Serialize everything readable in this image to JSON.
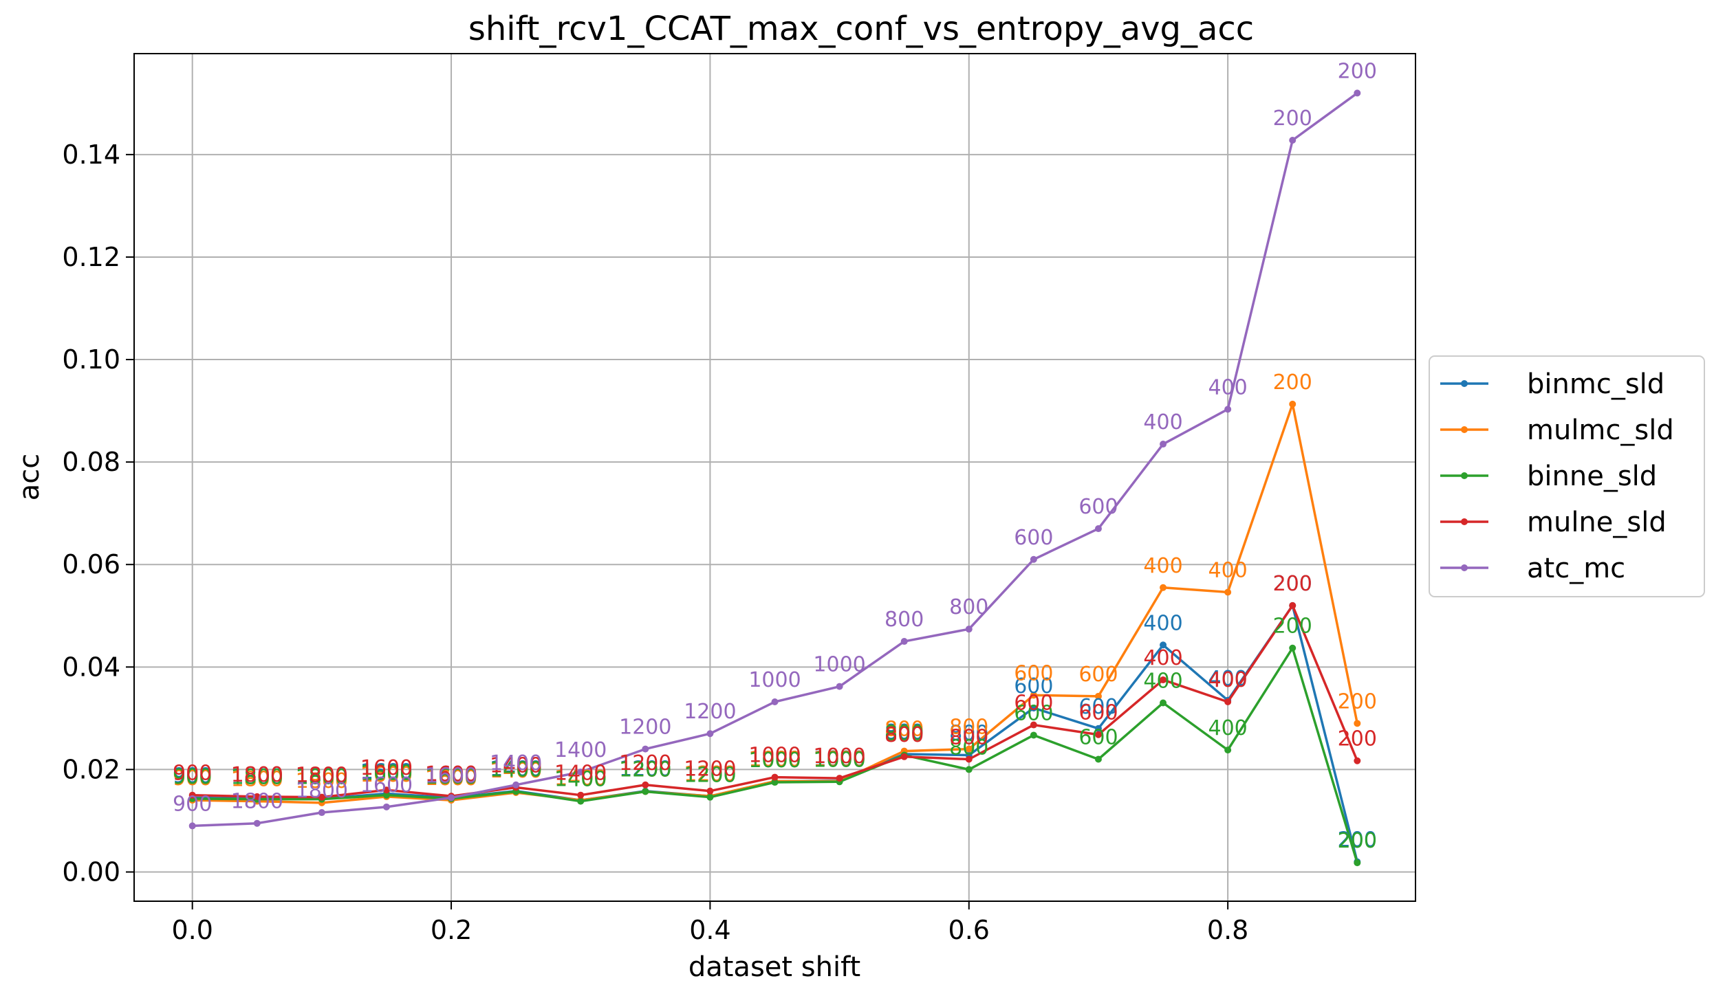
{
  "chart_data": {
    "type": "line",
    "title": "shift_rcv1_CCAT_max_conf_vs_entropy_avg_acc",
    "xlabel": "dataset shift",
    "ylabel": "acc",
    "xlim": [
      -0.045,
      0.945
    ],
    "ylim": [
      -0.0057,
      0.1597
    ],
    "xticks": [
      0.0,
      0.2,
      0.4,
      0.6,
      0.8
    ],
    "xtick_labels": [
      "0.0",
      "0.2",
      "0.4",
      "0.6",
      "0.8"
    ],
    "yticks": [
      0.0,
      0.02,
      0.04,
      0.06,
      0.08,
      0.1,
      0.12,
      0.14
    ],
    "ytick_labels": [
      "0.00",
      "0.02",
      "0.04",
      "0.06",
      "0.08",
      "0.10",
      "0.12",
      "0.14"
    ],
    "grid": true,
    "legend_position": "right-outside",
    "x": [
      0.0,
      0.05,
      0.1,
      0.15,
      0.2,
      0.25,
      0.3,
      0.35,
      0.4,
      0.45,
      0.5,
      0.55,
      0.6,
      0.65,
      0.7,
      0.75,
      0.8,
      0.85,
      0.9
    ],
    "point_labels": [
      "900",
      "1800",
      "1800",
      "1600",
      "1600",
      "1400",
      "1400",
      "1200",
      "1200",
      "1000",
      "1000",
      "800",
      "800",
      "600",
      "600",
      "400",
      "400",
      "200",
      "200"
    ],
    "series": [
      {
        "name": "binmc_sld",
        "color": "#1f77b4",
        "values": [
          0.0145,
          0.0143,
          0.0143,
          0.0153,
          0.0145,
          0.0158,
          0.014,
          0.0158,
          0.0148,
          0.0177,
          0.0178,
          0.023,
          0.0228,
          0.032,
          0.028,
          0.0443,
          0.0335,
          0.052,
          0.002
        ]
      },
      {
        "name": "mulmc_sld",
        "color": "#ff7f0e",
        "values": [
          0.014,
          0.0138,
          0.0135,
          0.0147,
          0.014,
          0.0155,
          0.014,
          0.0157,
          0.0148,
          0.0177,
          0.0177,
          0.0236,
          0.024,
          0.0345,
          0.0343,
          0.0555,
          0.0546,
          0.0913,
          0.029
        ]
      },
      {
        "name": "binne_sld",
        "color": "#2ca02c",
        "values": [
          0.0143,
          0.0142,
          0.0142,
          0.015,
          0.0143,
          0.0157,
          0.0138,
          0.0157,
          0.0146,
          0.0175,
          0.0176,
          0.0228,
          0.02,
          0.0267,
          0.022,
          0.033,
          0.0238,
          0.0437,
          0.0018
        ]
      },
      {
        "name": "mulne_sld",
        "color": "#d62728",
        "values": [
          0.015,
          0.0147,
          0.0146,
          0.016,
          0.0148,
          0.0165,
          0.015,
          0.017,
          0.0158,
          0.0185,
          0.0183,
          0.0225,
          0.022,
          0.0287,
          0.0268,
          0.0375,
          0.0332,
          0.052,
          0.0217
        ]
      },
      {
        "name": "atc_mc",
        "color": "#9467bd",
        "values": [
          0.009,
          0.0095,
          0.0116,
          0.0127,
          0.0145,
          0.017,
          0.0195,
          0.024,
          0.027,
          0.0332,
          0.0362,
          0.045,
          0.0474,
          0.061,
          0.067,
          0.0835,
          0.0903,
          0.1428,
          0.152
        ]
      }
    ]
  }
}
